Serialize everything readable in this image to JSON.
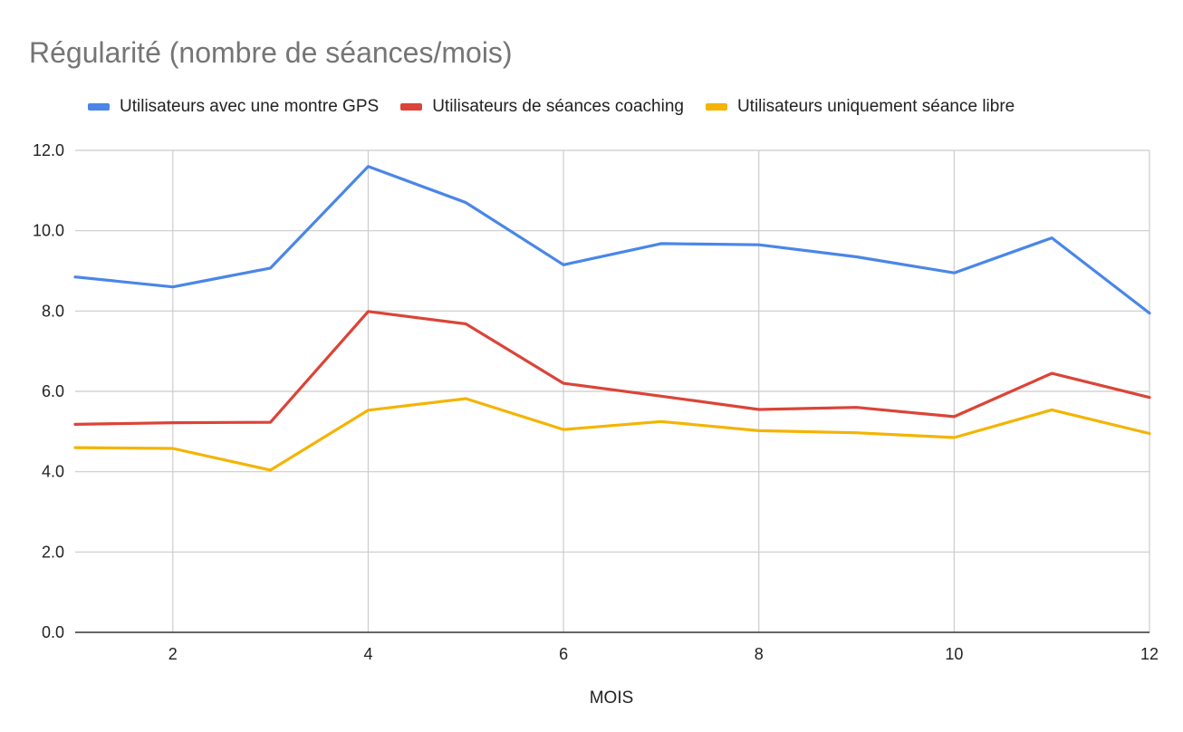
{
  "chart_data": {
    "type": "line",
    "title": "Régularité (nombre de séances/mois)",
    "xlabel": "MOIS",
    "ylabel": "",
    "x": [
      1,
      2,
      3,
      4,
      5,
      6,
      7,
      8,
      9,
      10,
      11,
      12
    ],
    "xlim": [
      1,
      12
    ],
    "ylim": [
      0,
      12
    ],
    "x_ticks": [
      2,
      4,
      6,
      8,
      10,
      12
    ],
    "y_ticks": [
      0,
      2,
      4,
      6,
      8,
      10,
      12
    ],
    "y_tick_labels": [
      "0.0",
      "2.0",
      "4.0",
      "6.0",
      "8.0",
      "10.0",
      "12.0"
    ],
    "grid": true,
    "legend_position": "top",
    "series": [
      {
        "name": "Utilisateurs avec une montre GPS",
        "color": "#4a86e8",
        "values": [
          8.85,
          8.6,
          9.07,
          11.6,
          10.7,
          9.15,
          9.68,
          9.65,
          9.35,
          8.95,
          9.82,
          7.95
        ]
      },
      {
        "name": "Utilisateurs de séances coaching",
        "color": "#db4437",
        "values": [
          5.18,
          5.22,
          5.23,
          7.99,
          7.68,
          6.2,
          5.88,
          5.55,
          5.6,
          5.37,
          6.45,
          5.85
        ]
      },
      {
        "name": "Utilisateurs uniquement séance libre",
        "color": "#f4b400",
        "values": [
          4.6,
          4.58,
          4.04,
          5.53,
          5.82,
          5.05,
          5.25,
          5.02,
          4.97,
          4.85,
          5.54,
          4.95
        ]
      }
    ]
  }
}
